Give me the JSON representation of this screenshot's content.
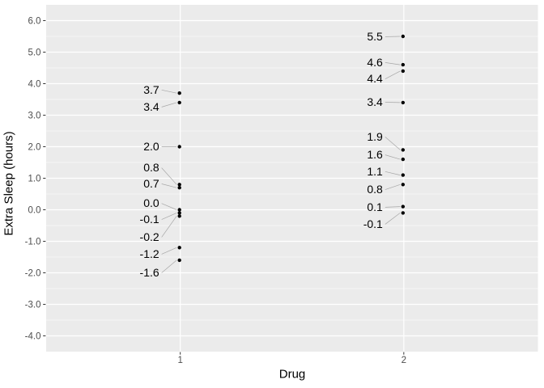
{
  "figure": {
    "background": "#FFFFFF"
  },
  "chart_data": {
    "type": "scatter",
    "title": "",
    "xlabel": "Drug",
    "ylabel": "Extra Sleep (hours)",
    "x_categories": [
      "1",
      "2"
    ],
    "xlim": [
      0.4,
      2.6
    ],
    "ylim": [
      -4.5,
      6.5
    ],
    "yticks": [
      6,
      5,
      4,
      3,
      2,
      1,
      0,
      -1,
      -2,
      -3,
      -4
    ],
    "ytick_labels": [
      "6.0",
      "5.0",
      "4.0",
      "3.0",
      "2.0",
      "1.0",
      "0.0",
      "-1.0",
      "-2.0",
      "-3.0",
      "-4.0"
    ],
    "yminor_ticks": [
      5.5,
      4.5,
      3.5,
      2.5,
      1.5,
      0.5,
      -0.5,
      -1.5,
      -2.5,
      -3.5
    ],
    "grid": "major-and-minor-horizontal, major-vertical-at-categories",
    "legend": "none",
    "colors": {
      "panel_bg": "#EBEBEB",
      "grid_major": "#FFFFFF",
      "grid_minor": "#FFFFFF",
      "point": "#000000",
      "data_label": "#000000",
      "leader_line": "#A6A6A6",
      "axis_text": "#4D4D4D",
      "axis_tick": "#333333",
      "axis_title": "#000000"
    },
    "series": [
      {
        "name": "1",
        "x": 1,
        "points": [
          {
            "value": 3.7,
            "label": "3.7",
            "label_y": 3.8
          },
          {
            "value": 3.4,
            "label": "3.4",
            "label_y": 3.26
          },
          {
            "value": 2.0,
            "label": "2.0",
            "label_y": 2.0
          },
          {
            "value": 0.8,
            "label": "0.8",
            "label_y": 1.33
          },
          {
            "value": 0.7,
            "label": "0.7",
            "label_y": 0.82
          },
          {
            "value": 0.0,
            "label": "0.0",
            "label_y": 0.2
          },
          {
            "value": -0.1,
            "label": "-0.1",
            "label_y": -0.31
          },
          {
            "value": -0.2,
            "label": "-0.2",
            "label_y": -0.87
          },
          {
            "value": -1.2,
            "label": "-1.2",
            "label_y": -1.41
          },
          {
            "value": -1.6,
            "label": "-1.6",
            "label_y": -2.0
          }
        ]
      },
      {
        "name": "2",
        "x": 2,
        "points": [
          {
            "value": 5.5,
            "label": "5.5",
            "label_y": 5.49
          },
          {
            "value": 4.6,
            "label": "4.6",
            "label_y": 4.67
          },
          {
            "value": 4.4,
            "label": "4.4",
            "label_y": 4.15
          },
          {
            "value": 3.4,
            "label": "3.4",
            "label_y": 3.41
          },
          {
            "value": 1.9,
            "label": "1.9",
            "label_y": 2.31
          },
          {
            "value": 1.6,
            "label": "1.6",
            "label_y": 1.74
          },
          {
            "value": 1.1,
            "label": "1.1",
            "label_y": 1.21
          },
          {
            "value": 0.8,
            "label": "0.8",
            "label_y": 0.64
          },
          {
            "value": 0.1,
            "label": "0.1",
            "label_y": 0.08
          },
          {
            "value": -0.1,
            "label": "-0.1",
            "label_y": -0.46
          }
        ]
      }
    ]
  }
}
